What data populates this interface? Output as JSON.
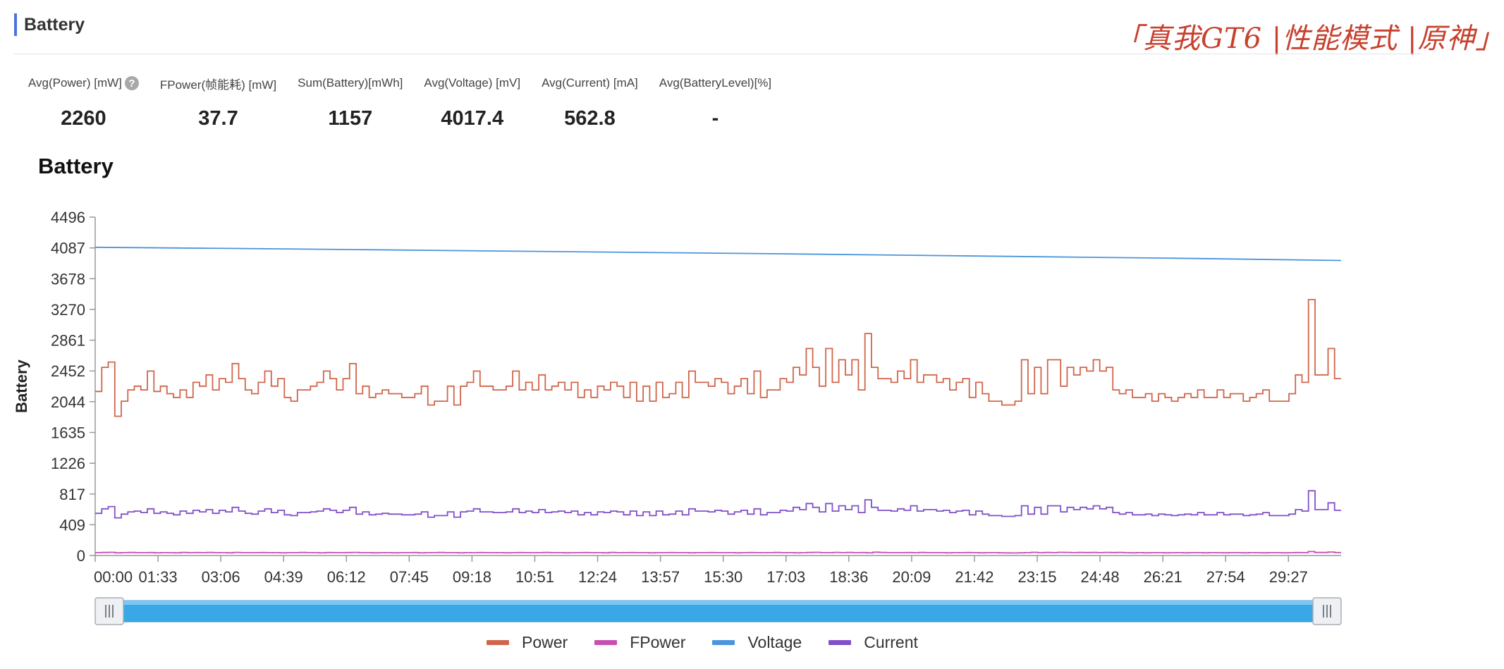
{
  "header": {
    "title": "Battery",
    "corner_text": "「真我GT6 |性能模式 |原神」"
  },
  "stats": [
    {
      "label": "Avg(Power) [mW]",
      "value": "2260",
      "help": "?"
    },
    {
      "label": "FPower(帧能耗) [mW]",
      "value": "37.7"
    },
    {
      "label": "Sum(Battery)[mWh]",
      "value": "1157"
    },
    {
      "label": "Avg(Voltage) [mV]",
      "value": "4017.4"
    },
    {
      "label": "Avg(Current) [mA]",
      "value": "562.8"
    },
    {
      "label": "Avg(BatteryLevel)[%]",
      "value": "-"
    }
  ],
  "chart_data": {
    "type": "line",
    "title": "Battery",
    "ylabel": "Battery",
    "ylim": [
      0,
      4496
    ],
    "yticks": [
      "0",
      "409",
      "817",
      "1226",
      "1635",
      "2044",
      "2452",
      "2861",
      "3270",
      "3678",
      "4087",
      "4496"
    ],
    "xticks": [
      "00:00",
      "01:33",
      "03:06",
      "04:39",
      "06:12",
      "07:45",
      "09:18",
      "10:51",
      "12:24",
      "13:57",
      "15:30",
      "17:03",
      "18:36",
      "20:09",
      "21:42",
      "23:15",
      "24:48",
      "26:21",
      "27:54",
      "29:27"
    ],
    "x_end_seconds": 1845,
    "legend_position": "bottom",
    "series": [
      {
        "name": "Power",
        "color": "#d0654a",
        "step": true,
        "values": [
          2180,
          2500,
          2570,
          1850,
          2050,
          2200,
          2250,
          2200,
          2450,
          2180,
          2250,
          2150,
          2100,
          2200,
          2100,
          2300,
          2250,
          2400,
          2200,
          2350,
          2300,
          2550,
          2350,
          2200,
          2150,
          2300,
          2450,
          2250,
          2350,
          2100,
          2050,
          2200,
          2200,
          2250,
          2300,
          2450,
          2350,
          2200,
          2350,
          2550,
          2150,
          2250,
          2100,
          2150,
          2200,
          2150,
          2150,
          2100,
          2100,
          2150,
          2250,
          2000,
          2050,
          2050,
          2250,
          2000,
          2250,
          2300,
          2450,
          2250,
          2250,
          2200,
          2200,
          2250,
          2450,
          2200,
          2300,
          2200,
          2400,
          2200,
          2250,
          2300,
          2200,
          2300,
          2100,
          2200,
          2100,
          2250,
          2200,
          2300,
          2250,
          2100,
          2300,
          2050,
          2250,
          2050,
          2300,
          2100,
          2150,
          2300,
          2100,
          2450,
          2300,
          2300,
          2250,
          2350,
          2300,
          2150,
          2250,
          2350,
          2150,
          2450,
          2100,
          2200,
          2200,
          2350,
          2300,
          2500,
          2400,
          2750,
          2500,
          2250,
          2750,
          2300,
          2600,
          2400,
          2600,
          2200,
          2950,
          2500,
          2350,
          2350,
          2300,
          2450,
          2350,
          2600,
          2300,
          2400,
          2400,
          2300,
          2350,
          2200,
          2300,
          2350,
          2100,
          2300,
          2150,
          2050,
          2050,
          2000,
          2000,
          2050,
          2600,
          2150,
          2500,
          2150,
          2600,
          2600,
          2250,
          2500,
          2400,
          2500,
          2450,
          2600,
          2450,
          2500,
          2200,
          2150,
          2200,
          2100,
          2100,
          2150,
          2050,
          2150,
          2100,
          2050,
          2100,
          2150,
          2100,
          2200,
          2100,
          2100,
          2200,
          2100,
          2150,
          2150,
          2050,
          2100,
          2150,
          2200,
          2050,
          2050,
          2050,
          2150,
          2400,
          2300,
          3400,
          2400,
          2400,
          2750,
          2350
        ]
      },
      {
        "name": "FPower",
        "color": "#c64fb0",
        "step": true,
        "values": [
          38,
          40,
          42,
          36,
          38,
          40,
          38,
          37,
          39,
          36,
          38,
          37,
          36,
          40,
          37,
          39,
          38,
          40,
          37,
          38,
          36,
          41,
          38,
          37,
          38,
          39,
          37,
          38,
          36,
          37,
          38,
          40,
          38,
          37,
          36,
          39,
          38,
          37,
          39,
          41,
          37,
          38,
          36,
          37,
          38,
          36,
          37,
          38,
          39,
          36,
          37,
          38,
          40,
          37,
          38,
          36,
          38,
          37,
          39,
          38,
          37,
          38,
          36,
          37,
          39,
          38,
          37,
          38,
          40,
          37,
          38,
          36,
          37,
          38,
          39,
          37,
          38,
          36,
          40,
          37,
          38,
          39,
          37,
          38,
          36,
          37,
          38,
          39,
          37,
          38,
          36,
          38,
          37,
          39,
          38,
          37,
          38,
          36,
          37,
          39,
          38,
          37,
          38,
          40,
          37,
          38,
          36,
          37,
          40,
          42,
          38,
          37,
          41,
          38,
          40,
          37,
          39,
          36,
          44,
          40,
          38,
          37,
          38,
          39,
          37,
          40,
          38,
          37,
          38,
          36,
          38,
          37,
          39,
          38,
          36,
          37,
          38,
          36,
          35,
          34,
          36,
          38,
          42,
          37,
          40,
          38,
          42,
          41,
          38,
          40,
          39,
          40,
          38,
          41,
          39,
          40,
          37,
          36,
          38,
          36,
          37,
          38,
          36,
          37,
          38,
          36,
          37,
          38,
          36,
          38,
          37,
          36,
          38,
          37,
          36,
          38,
          37,
          36,
          38,
          37,
          36,
          37,
          39,
          38,
          52,
          40,
          40,
          46,
          39
        ]
      },
      {
        "name": "Voltage",
        "color": "#4a95dc",
        "step": false,
        "x_seconds": [
          0,
          200,
          400,
          600,
          800,
          1000,
          1200,
          1400,
          1600,
          1845
        ],
        "values": [
          4095,
          4080,
          4063,
          4045,
          4028,
          4010,
          3990,
          3970,
          3950,
          3920
        ]
      },
      {
        "name": "Current",
        "color": "#8150c8",
        "step": true,
        "values": [
          560,
          620,
          650,
          500,
          550,
          580,
          590,
          570,
          620,
          560,
          580,
          560,
          540,
          590,
          560,
          600,
          580,
          610,
          560,
          600,
          580,
          640,
          590,
          560,
          550,
          590,
          620,
          570,
          600,
          540,
          530,
          570,
          570,
          580,
          590,
          620,
          600,
          570,
          600,
          640,
          550,
          580,
          540,
          550,
          560,
          550,
          550,
          540,
          540,
          550,
          580,
          510,
          530,
          530,
          580,
          510,
          580,
          590,
          620,
          580,
          580,
          570,
          570,
          580,
          620,
          570,
          590,
          570,
          610,
          570,
          580,
          590,
          570,
          590,
          540,
          570,
          540,
          580,
          570,
          590,
          580,
          540,
          590,
          530,
          580,
          530,
          590,
          540,
          550,
          590,
          540,
          620,
          590,
          590,
          580,
          600,
          590,
          550,
          580,
          600,
          550,
          620,
          540,
          570,
          570,
          600,
          590,
          640,
          610,
          690,
          640,
          580,
          690,
          590,
          660,
          610,
          660,
          570,
          740,
          640,
          600,
          600,
          590,
          620,
          600,
          660,
          590,
          610,
          610,
          590,
          600,
          570,
          590,
          600,
          540,
          590,
          550,
          530,
          530,
          520,
          520,
          530,
          660,
          550,
          640,
          550,
          660,
          660,
          580,
          640,
          610,
          640,
          620,
          660,
          620,
          640,
          570,
          550,
          570,
          540,
          540,
          550,
          530,
          550,
          540,
          530,
          540,
          550,
          540,
          570,
          540,
          540,
          570,
          540,
          550,
          550,
          530,
          540,
          550,
          570,
          530,
          530,
          530,
          550,
          610,
          590,
          860,
          610,
          610,
          700,
          600
        ]
      }
    ]
  },
  "legend": [
    "Power",
    "FPower",
    "Voltage",
    "Current"
  ]
}
